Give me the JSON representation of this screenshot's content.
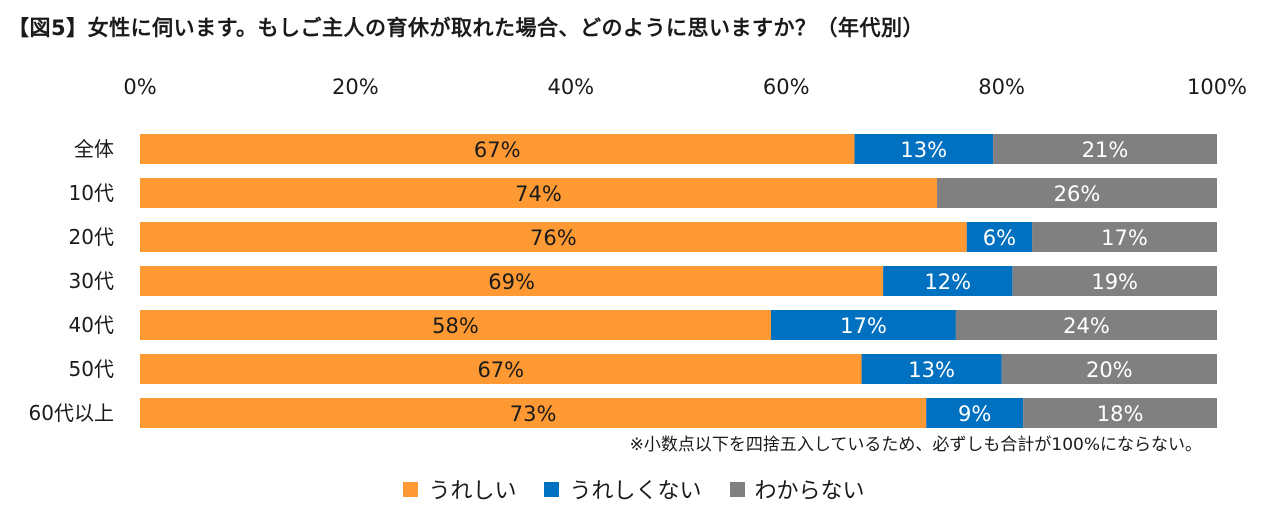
{
  "title": "【図5】女性に伺います。もしご主人の育休が取れた場合、どのように思いますか？（年代別）",
  "note": "※小数点以下を四捨五入しているため、必ずしも合計が100%にならない。",
  "colors": {
    "series_0": "#FF9933",
    "series_1": "#0070C0",
    "series_2": "#808080"
  },
  "chart_data": {
    "type": "bar",
    "orientation": "horizontal",
    "stacked": true,
    "title": "",
    "xlabel": "",
    "ylabel": "",
    "xlim": [
      0,
      100
    ],
    "x_ticks": [
      "0%",
      "20%",
      "40%",
      "60%",
      "80%",
      "100%"
    ],
    "categories": [
      "全体",
      "10代",
      "20代",
      "30代",
      "40代",
      "50代",
      "60代以上"
    ],
    "series": [
      {
        "name": "うれしい",
        "values": [
          67,
          74,
          76,
          69,
          58,
          67,
          73
        ],
        "labels": [
          "67%",
          "74%",
          "76%",
          "69%",
          "58%",
          "67%",
          "73%"
        ]
      },
      {
        "name": "うれしくない",
        "values": [
          13,
          0,
          6,
          12,
          17,
          13,
          9
        ],
        "labels": [
          "13%",
          "",
          "6%",
          "12%",
          "17%",
          "13%",
          "9%"
        ]
      },
      {
        "name": "わからない",
        "values": [
          21,
          26,
          17,
          19,
          24,
          20,
          18
        ],
        "labels": [
          "21%",
          "26%",
          "17%",
          "19%",
          "24%",
          "20%",
          "18%"
        ]
      }
    ],
    "legend_position": "bottom",
    "grid": false
  }
}
